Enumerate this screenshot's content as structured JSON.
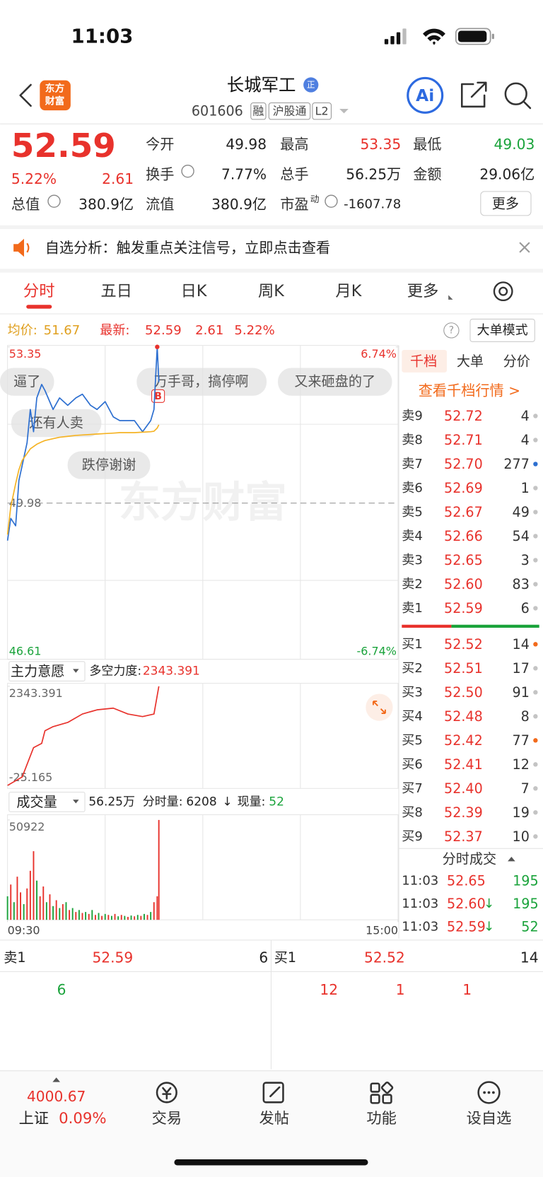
{
  "status_bar": {
    "time": "11:03"
  },
  "header": {
    "logo": [
      "东方",
      "财富"
    ],
    "title": "长城军工",
    "badge": "正",
    "code": "601606",
    "tags": [
      "融",
      "沪股通",
      "L2"
    ],
    "ai": "Ai"
  },
  "quote": {
    "price": "52.59",
    "change_pct": "5.22%",
    "change": "2.61",
    "fields": [
      {
        "label": "今开",
        "value": "49.98"
      },
      {
        "label": "最高",
        "value": "53.35"
      },
      {
        "label": "最低",
        "value": "49.03"
      },
      {
        "label": "换手",
        "value": "7.77%"
      },
      {
        "label": "总手",
        "value": "56.25万"
      },
      {
        "label": "金额",
        "value": "29.06亿"
      },
      {
        "label": "总值",
        "value": "380.9亿"
      },
      {
        "label": "流值",
        "value": "380.9亿"
      },
      {
        "label": "市盈",
        "sup": "动",
        "value": "-1607.78"
      }
    ],
    "more": "更多"
  },
  "notice": "自选分析：触发重点关注信号，立即点击查看",
  "tabs": [
    "分时",
    "五日",
    "日K",
    "周K",
    "月K",
    "更多"
  ],
  "chart_info": {
    "avg_label": "均价:",
    "avg": "51.67",
    "last_label": "最新:",
    "last": "52.59",
    "change": "2.61",
    "change_pct": "5.22%",
    "help": "?",
    "mode_button": "大单模式"
  },
  "comments": [
    "逼了",
    "万手哥，搞停啊",
    "又来砸盘的了",
    "还有人卖",
    "跌停谢谢"
  ],
  "watermark": "东方财富",
  "trade_marker": "B",
  "force_header": {
    "selector": "主力意愿",
    "label": "多空力度:",
    "value": "2343.391"
  },
  "volume_header": {
    "selector": "成交量",
    "total": "56.25万",
    "minute_label": "分时量:",
    "minute_value": "6208",
    "arrow": "↓",
    "current_label": "现量:",
    "current_value": "52"
  },
  "chart_data": [
    {
      "type": "line",
      "x": [
        0,
        2,
        5,
        7,
        9,
        12,
        14,
        16,
        18,
        21,
        23,
        28,
        32,
        37,
        42,
        46,
        51,
        55,
        60,
        65,
        69,
        74,
        78,
        83,
        88,
        90,
        92,
        93
      ],
      "series": [
        {
          "color": "#2d6fd0",
          "values": [
            49.17,
            49.65,
            49.49,
            50.47,
            50.79,
            51.28,
            52.0,
            51.52,
            52.25,
            52.54,
            52.41,
            52.0,
            52.25,
            52.09,
            52.25,
            52.33,
            52.09,
            52.0,
            52.17,
            51.84,
            51.76,
            51.76,
            51.76,
            51.52,
            51.76,
            52.0,
            53.35,
            52.59
          ]
        },
        {
          "color": "#f5b324",
          "values": [
            49.3,
            49.9,
            50.4,
            50.7,
            50.9,
            51.05,
            51.15,
            51.2,
            51.25,
            51.3,
            51.33,
            51.37,
            51.4,
            51.42,
            51.44,
            51.45,
            51.46,
            51.47,
            51.48,
            51.49,
            51.5,
            51.5,
            51.5,
            51.51,
            51.52,
            51.53,
            51.6,
            51.67
          ]
        }
      ],
      "xlim": [
        0,
        240
      ],
      "ylim": [
        46.61,
        53.35
      ],
      "yticks": [
        53.35,
        49.98,
        46.61
      ],
      "y2lim": [
        -6.74,
        6.74
      ],
      "y2ticks": [
        {
          "value": 6.74,
          "label": "6.74%"
        },
        {
          "value": -6.74,
          "label": "-6.74%"
        }
      ]
    },
    {
      "type": "line",
      "x": [
        0,
        9,
        16,
        21,
        23,
        28,
        37,
        46,
        55,
        65,
        74,
        83,
        90,
        93
      ],
      "series": [
        {
          "color": "#e8322c",
          "values": [
            -25.165,
            176,
            878,
            979,
            1280,
            1380,
            1480,
            1681,
            1781,
            1821,
            1681,
            1620,
            1681,
            2343.391
          ]
        }
      ],
      "xlim": [
        0,
        240
      ],
      "ylim": [
        -25.165,
        2343.391
      ],
      "yticks": [
        2343.391,
        -25.165
      ]
    },
    {
      "type": "bar",
      "series": [
        {
          "color": "#e8322c",
          "x": [
            2,
            6,
            8,
            12,
            14,
            16,
            20,
            22,
            26,
            30,
            34,
            38,
            42,
            46,
            50,
            54,
            58,
            62,
            66,
            70,
            74,
            78,
            82,
            86,
            90,
            92,
            93
          ],
          "values": [
            18000,
            22000,
            14000,
            16000,
            25000,
            35000,
            12000,
            17000,
            13000,
            10000,
            8000,
            5000,
            4000,
            3500,
            3000,
            2500,
            2000,
            2500,
            3000,
            2500,
            1500,
            1800,
            2000,
            2500,
            9000,
            12000,
            50922
          ]
        },
        {
          "color": "#1aa33b",
          "x": [
            0,
            4,
            10,
            18,
            24,
            28,
            32,
            36,
            40,
            44,
            48,
            52,
            56,
            60,
            64,
            68,
            72,
            76,
            80,
            84,
            88
          ],
          "values": [
            12000,
            9000,
            8000,
            20000,
            9000,
            7000,
            6000,
            9000,
            6000,
            5000,
            4000,
            5000,
            3500,
            3000,
            2000,
            1800,
            2000,
            2200,
            2500,
            3000,
            4000
          ]
        }
      ],
      "xlim": [
        0,
        240
      ],
      "xticks": [
        {
          "value": 0,
          "label": "09:30"
        },
        {
          "value": 240,
          "label": "15:00"
        }
      ],
      "ylim": [
        0,
        50922
      ],
      "yticks": [
        50922
      ]
    }
  ],
  "order_book": {
    "tabs": [
      "千档",
      "大单",
      "分价"
    ],
    "link": "查看千档行情 >",
    "sells": [
      {
        "label": "卖9",
        "price": "52.72",
        "volume": "4",
        "dot": "#c4c4c4"
      },
      {
        "label": "卖8",
        "price": "52.71",
        "volume": "4",
        "dot": "#c4c4c4"
      },
      {
        "label": "卖7",
        "price": "52.70",
        "volume": "277",
        "dot": "#2d6fd0"
      },
      {
        "label": "卖6",
        "price": "52.69",
        "volume": "1",
        "dot": "#c4c4c4"
      },
      {
        "label": "卖5",
        "price": "52.67",
        "volume": "49",
        "dot": "#c4c4c4"
      },
      {
        "label": "卖4",
        "price": "52.66",
        "volume": "54",
        "dot": "#c4c4c4"
      },
      {
        "label": "卖3",
        "price": "52.65",
        "volume": "3",
        "dot": "#c4c4c4"
      },
      {
        "label": "卖2",
        "price": "52.60",
        "volume": "83",
        "dot": "#c4c4c4"
      },
      {
        "label": "卖1",
        "price": "52.59",
        "volume": "6",
        "dot": "#c4c4c4"
      }
    ],
    "buys": [
      {
        "label": "买1",
        "price": "52.52",
        "volume": "14",
        "dot": "#f26a1b"
      },
      {
        "label": "买2",
        "price": "52.51",
        "volume": "17",
        "dot": "#c4c4c4"
      },
      {
        "label": "买3",
        "price": "52.50",
        "volume": "91",
        "dot": "#c4c4c4"
      },
      {
        "label": "买4",
        "price": "52.48",
        "volume": "8",
        "dot": "#c4c4c4"
      },
      {
        "label": "买5",
        "price": "52.42",
        "volume": "77",
        "dot": "#f26a1b"
      },
      {
        "label": "买6",
        "price": "52.41",
        "volume": "12",
        "dot": "#c4c4c4"
      },
      {
        "label": "买7",
        "price": "52.40",
        "volume": "7",
        "dot": "#c4c4c4"
      },
      {
        "label": "买8",
        "price": "52.39",
        "volume": "19",
        "dot": "#c4c4c4"
      },
      {
        "label": "买9",
        "price": "52.37",
        "volume": "10",
        "dot": "#c4c4c4"
      }
    ]
  },
  "trades": {
    "title": "分时成交",
    "rows": [
      {
        "time": "11:03",
        "price": "52.65",
        "volume": "195"
      },
      {
        "time": "11:03",
        "price": "52.60",
        "arrow": "↓",
        "volume": "195"
      },
      {
        "time": "11:03",
        "price": "52.59",
        "arrow": "↓",
        "volume": "52"
      }
    ]
  },
  "queue": {
    "sell": {
      "label": "卖1",
      "price": "52.59",
      "volume": "6",
      "orders": [
        "6"
      ]
    },
    "buy": {
      "label": "买1",
      "price": "52.52",
      "volume": "14",
      "orders": [
        "12",
        "1",
        "1"
      ]
    }
  },
  "nav": {
    "index_value": "4000.67",
    "index_name": "上证",
    "index_pct": "0.09%",
    "items": [
      "交易",
      "发帖",
      "功能",
      "设自选"
    ]
  }
}
